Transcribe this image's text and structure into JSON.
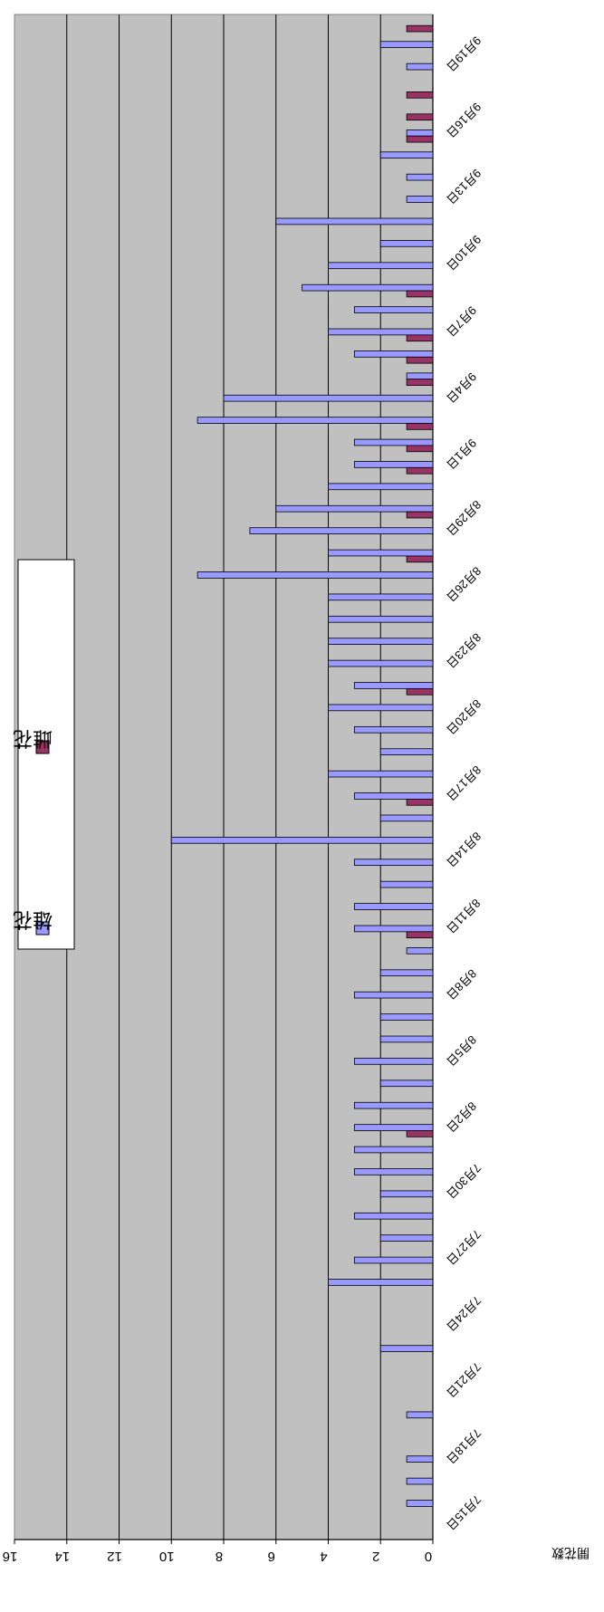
{
  "chart_data": {
    "type": "bar",
    "title": "",
    "xlabel": "",
    "ylabel": "開花数",
    "ylim": [
      0,
      16
    ],
    "y_ticks": [
      0,
      2,
      4,
      6,
      8,
      10,
      12,
      14,
      16
    ],
    "grid": true,
    "legend_position": "top-right",
    "colors": {
      "plot_bg": "#c0c0c0",
      "male": "#9999ff",
      "female": "#993366",
      "border": "#000000",
      "frame": "#808080"
    },
    "categories": [
      "7月15日",
      "7月16日",
      "7月17日",
      "7月18日",
      "7月19日",
      "7月20日",
      "7月21日",
      "7月22日",
      "7月23日",
      "7月24日",
      "7月25日",
      "7月26日",
      "7月27日",
      "7月28日",
      "7月29日",
      "7月30日",
      "7月31日",
      "8月1日",
      "8月2日",
      "8月3日",
      "8月4日",
      "8月5日",
      "8月6日",
      "8月7日",
      "8月8日",
      "8月9日",
      "8月10日",
      "8月11日",
      "8月12日",
      "8月13日",
      "8月14日",
      "8月15日",
      "8月16日",
      "8月17日",
      "8月18日",
      "8月19日",
      "8月20日",
      "8月21日",
      "8月22日",
      "8月23日",
      "8月24日",
      "8月25日",
      "8月26日",
      "8月27日",
      "8月28日",
      "8月29日",
      "8月30日",
      "8月31日",
      "9月1日",
      "9月2日",
      "9月3日",
      "9月4日",
      "9月5日",
      "9月6日",
      "9月7日",
      "9月8日",
      "9月9日",
      "9月10日",
      "9月11日",
      "9月12日",
      "9月13日",
      "9月14日",
      "9月15日",
      "9月16日",
      "9月17日",
      "9月18日",
      "9月19日",
      "9月20日",
      "9月21日"
    ],
    "shown_category_labels": [
      "7月15日",
      "7月18日",
      "7月21日",
      "7月24日",
      "7月27日",
      "7月30日",
      "8月2日",
      "8月5日",
      "8月8日",
      "8月11日",
      "8月14日",
      "8月17日",
      "8月20日",
      "8月23日",
      "8月26日",
      "8月29日",
      "9月1日",
      "9月4日",
      "9月7日",
      "9月10日",
      "9月13日",
      "9月16日",
      "9月19日"
    ],
    "series": [
      {
        "name": "雄花",
        "key": "male",
        "values": [
          0,
          1,
          1,
          1,
          0,
          1,
          0,
          0,
          2,
          0,
          0,
          4,
          3,
          2,
          3,
          2,
          3,
          3,
          3,
          3,
          2,
          3,
          2,
          2,
          3,
          2,
          1,
          3,
          3,
          2,
          3,
          10,
          2,
          3,
          4,
          2,
          3,
          4,
          3,
          4,
          4,
          4,
          4,
          9,
          4,
          7,
          6,
          4,
          3,
          3,
          9,
          8,
          1,
          3,
          4,
          3,
          5,
          4,
          2,
          6,
          1,
          1,
          2,
          1,
          0,
          0,
          1,
          2,
          0
        ]
      },
      {
        "name": "雌花",
        "key": "female",
        "values": [
          0,
          0,
          0,
          0,
          0,
          0,
          0,
          0,
          0,
          0,
          0,
          0,
          0,
          0,
          0,
          0,
          0,
          0,
          1,
          0,
          0,
          0,
          0,
          0,
          0,
          0,
          0,
          1,
          0,
          0,
          0,
          0,
          0,
          1,
          0,
          0,
          0,
          0,
          1,
          0,
          0,
          0,
          0,
          0,
          1,
          0,
          1,
          0,
          1,
          1,
          1,
          0,
          1,
          1,
          1,
          0,
          1,
          0,
          0,
          0,
          0,
          0,
          0,
          1,
          1,
          1,
          0,
          0,
          1
        ]
      }
    ]
  }
}
